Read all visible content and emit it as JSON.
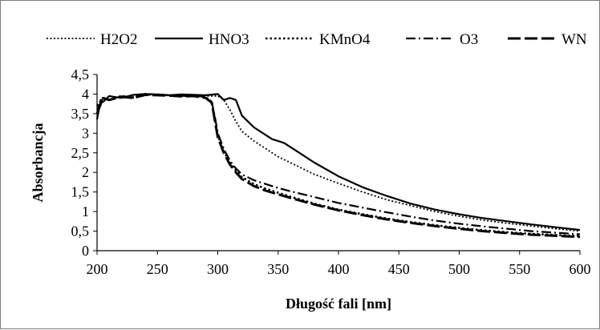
{
  "chart_data": {
    "type": "line",
    "xlabel": "Długość fali [nm]",
    "ylabel": "Absorbancja",
    "xlim": [
      200,
      600
    ],
    "ylim": [
      0,
      4.5
    ],
    "xticks": [
      "200",
      "250",
      "300",
      "350",
      "400",
      "450",
      "500",
      "550",
      "600"
    ],
    "yticks": [
      "0",
      "0,5",
      "1",
      "1,5",
      "2",
      "2,5",
      "3",
      "3,5",
      "4",
      "4,5"
    ],
    "grid": false,
    "legend_position": "top",
    "series": [
      {
        "name": "H2O2",
        "style": "dotted-thin",
        "color": "#000000",
        "x": [
          200,
          205,
          210,
          220,
          230,
          240,
          250,
          260,
          270,
          280,
          290,
          300,
          305,
          310,
          315,
          320,
          330,
          340,
          350,
          360,
          380,
          400,
          420,
          440,
          460,
          480,
          500,
          520,
          540,
          560,
          580,
          600
        ],
        "y": [
          3.6,
          3.9,
          3.85,
          3.95,
          3.92,
          4.0,
          3.98,
          3.97,
          3.96,
          3.98,
          3.95,
          3.95,
          3.85,
          3.6,
          3.3,
          3.05,
          2.8,
          2.6,
          2.4,
          2.25,
          1.95,
          1.72,
          1.5,
          1.3,
          1.15,
          1.0,
          0.88,
          0.78,
          0.7,
          0.63,
          0.56,
          0.5
        ]
      },
      {
        "name": "HNO3",
        "style": "solid",
        "color": "#000000",
        "x": [
          200,
          203,
          205,
          210,
          220,
          230,
          240,
          250,
          260,
          270,
          280,
          290,
          300,
          305,
          310,
          315,
          320,
          325,
          330,
          335,
          340,
          345,
          350,
          355,
          360,
          370,
          380,
          400,
          420,
          440,
          460,
          480,
          500,
          520,
          540,
          560,
          580,
          600
        ],
        "y": [
          3.35,
          3.85,
          3.8,
          3.95,
          3.9,
          3.98,
          4.0,
          3.99,
          3.97,
          3.99,
          3.98,
          3.97,
          4.0,
          3.85,
          3.9,
          3.85,
          3.45,
          3.3,
          3.15,
          3.05,
          2.95,
          2.85,
          2.8,
          2.75,
          2.65,
          2.45,
          2.25,
          1.9,
          1.62,
          1.4,
          1.2,
          1.05,
          0.93,
          0.83,
          0.75,
          0.67,
          0.6,
          0.53
        ]
      },
      {
        "name": "KMnO4",
        "style": "dotted-heavy",
        "color": "#000000",
        "x": [
          200,
          205,
          210,
          220,
          230,
          240,
          250,
          260,
          270,
          280,
          290,
          295,
          298,
          300,
          305,
          310,
          315,
          320,
          330,
          340,
          350,
          360,
          380,
          400,
          420,
          440,
          460,
          480,
          500,
          520,
          540,
          560,
          580,
          600
        ],
        "y": [
          3.7,
          3.9,
          3.85,
          3.95,
          3.92,
          4.0,
          3.98,
          3.97,
          3.95,
          3.96,
          3.92,
          3.8,
          3.3,
          2.95,
          2.55,
          2.25,
          2.05,
          1.88,
          1.7,
          1.58,
          1.48,
          1.38,
          1.2,
          1.05,
          0.93,
          0.82,
          0.73,
          0.65,
          0.58,
          0.52,
          0.47,
          0.43,
          0.4,
          0.37
        ]
      },
      {
        "name": "O3",
        "style": "dash-dot",
        "color": "#000000",
        "x": [
          200,
          205,
          210,
          220,
          230,
          240,
          250,
          260,
          270,
          280,
          290,
          295,
          298,
          300,
          305,
          310,
          315,
          320,
          330,
          340,
          350,
          360,
          380,
          400,
          420,
          440,
          460,
          480,
          500,
          520,
          540,
          560,
          580,
          600
        ],
        "y": [
          3.6,
          3.9,
          3.85,
          3.95,
          3.9,
          3.98,
          3.99,
          3.97,
          3.95,
          3.97,
          3.92,
          3.8,
          3.35,
          3.0,
          2.6,
          2.3,
          2.1,
          1.95,
          1.8,
          1.7,
          1.6,
          1.52,
          1.37,
          1.22,
          1.1,
          0.98,
          0.87,
          0.77,
          0.69,
          0.62,
          0.56,
          0.5,
          0.46,
          0.42
        ]
      },
      {
        "name": "WN",
        "style": "long-dash",
        "color": "#000000",
        "x": [
          200,
          205,
          210,
          220,
          230,
          240,
          250,
          260,
          270,
          280,
          290,
          295,
          298,
          300,
          305,
          310,
          315,
          320,
          330,
          340,
          350,
          360,
          380,
          400,
          420,
          440,
          460,
          480,
          500,
          520,
          540,
          560,
          580,
          600
        ],
        "y": [
          3.5,
          3.9,
          3.85,
          3.93,
          3.9,
          3.98,
          3.97,
          3.96,
          3.94,
          3.95,
          3.9,
          3.78,
          3.25,
          2.9,
          2.5,
          2.2,
          2.0,
          1.83,
          1.65,
          1.53,
          1.44,
          1.35,
          1.18,
          1.03,
          0.91,
          0.8,
          0.71,
          0.63,
          0.56,
          0.5,
          0.45,
          0.41,
          0.38,
          0.35
        ]
      }
    ]
  }
}
